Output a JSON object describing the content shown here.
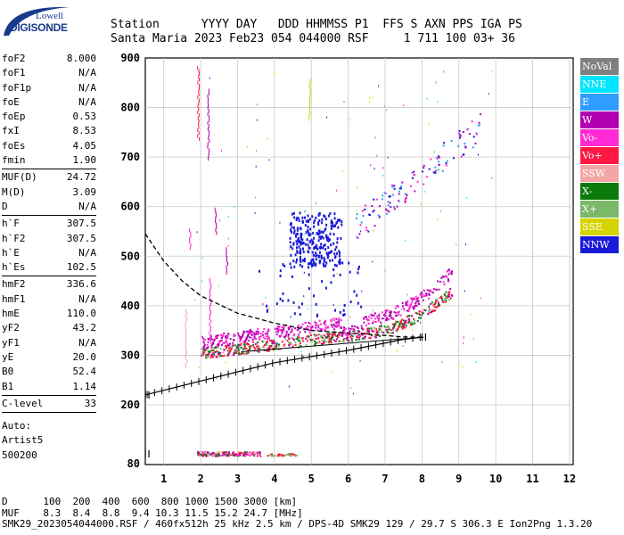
{
  "logo": {
    "line1": "Lowell",
    "line2": "DIGISONDE"
  },
  "header": {
    "line1": "Station      YYYY DAY   DDD HHMMSS P1  FFS S AXN PPS IGA PS",
    "line2": "Santa Maria 2023 Feb23 054 044000 RSF     1 711 100 03+ 36"
  },
  "params_groups": [
    [
      {
        "label": "foF2",
        "value": "8.000"
      },
      {
        "label": "foF1",
        "value": "N/A"
      },
      {
        "label": "foF1p",
        "value": "N/A"
      },
      {
        "label": "foE",
        "value": "N/A"
      },
      {
        "label": "foEp",
        "value": "0.53"
      },
      {
        "label": "fxI",
        "value": "8.53"
      },
      {
        "label": "foEs",
        "value": "4.05"
      },
      {
        "label": "fmin",
        "value": "1.90"
      }
    ],
    [
      {
        "label": "MUF(D)",
        "value": "24.72"
      },
      {
        "label": "M(D)",
        "value": "3.09"
      },
      {
        "label": "D",
        "value": "N/A"
      }
    ],
    [
      {
        "label": "h`F",
        "value": "307.5"
      },
      {
        "label": "h`F2",
        "value": "307.5"
      },
      {
        "label": "h`E",
        "value": "N/A"
      },
      {
        "label": "h`Es",
        "value": "102.5"
      }
    ],
    [
      {
        "label": "hmF2",
        "value": "336.6"
      },
      {
        "label": "hmF1",
        "value": "N/A"
      },
      {
        "label": "hmE",
        "value": "110.0"
      },
      {
        "label": "yF2",
        "value": "43.2"
      },
      {
        "label": "yF1",
        "value": "N/A"
      },
      {
        "label": "yE",
        "value": "20.0"
      },
      {
        "label": "B0",
        "value": "52.4"
      },
      {
        "label": "B1",
        "value": "1.14"
      }
    ],
    [
      {
        "label": "C-level",
        "value": "33"
      }
    ]
  ],
  "auto": [
    "Auto:",
    "Artist5",
    "500200"
  ],
  "legend": [
    {
      "label": "NoVal",
      "color": "#808080",
      "text": "#ffffff"
    },
    {
      "label": "NNE",
      "color": "#00e5ff",
      "text": "#ffffff"
    },
    {
      "label": "E",
      "color": "#2e9dff",
      "text": "#ffffff"
    },
    {
      "label": "W",
      "color": "#b000b0",
      "text": "#ffffff"
    },
    {
      "label": "Vo-",
      "color": "#ff2ad4",
      "text": "#ffffff"
    },
    {
      "label": "Vo+",
      "color": "#ff1744",
      "text": "#ffffff"
    },
    {
      "label": "SSW",
      "color": "#f4a6a6",
      "text": "#ffffff"
    },
    {
      "label": "X-",
      "color": "#0a7a0a",
      "text": "#ffffff"
    },
    {
      "label": "X+",
      "color": "#7ab86a",
      "text": "#ffffff"
    },
    {
      "label": "SSE",
      "color": "#d4d400",
      "text": "#ffffff"
    },
    {
      "label": "NNW",
      "color": "#1a1ad8",
      "text": "#ffffff"
    }
  ],
  "chart_data": {
    "type": "scatter",
    "x_ticks": [
      "1",
      "2",
      "3",
      "4",
      "5",
      "6",
      "7",
      "8",
      "9",
      "10",
      "11",
      "12"
    ],
    "y_ticks": [
      "80",
      "200",
      "300",
      "400",
      "500",
      "600",
      "700",
      "800",
      "900"
    ],
    "xlim": [
      0.5,
      12.1
    ],
    "ylim_note": "piecewise axis: 80 at bottom, 200-900 linear",
    "series_traces": [
      {
        "name": "F-trace-ordinary",
        "x": [
          2.0,
          3.0,
          4.0,
          5.0,
          6.0,
          7.0,
          7.5,
          8.0,
          8.5,
          8.8
        ],
        "y": [
          312,
          318,
          328,
          338,
          350,
          365,
          380,
          395,
          415,
          440
        ]
      },
      {
        "name": "F-trace-upper",
        "x": [
          2.0,
          3.0,
          4.0,
          5.0,
          5.5,
          6.0,
          7.0,
          8.0,
          8.5,
          9.0
        ],
        "y": [
          330,
          345,
          355,
          375,
          385,
          360,
          375,
          400,
          440,
          480
        ]
      },
      {
        "name": "Es-trace",
        "x": [
          1.9,
          2.5,
          3.0,
          3.5,
          4.0,
          4.5
        ],
        "y": [
          100,
          101,
          100,
          101,
          100,
          100
        ]
      }
    ],
    "profile_dashed": {
      "x": [
        0.5,
        1.0,
        1.5,
        2.0,
        3.0,
        4.0,
        5.0,
        6.0,
        7.0,
        7.5,
        8.0
      ],
      "y": [
        545,
        490,
        450,
        420,
        385,
        365,
        350,
        345,
        340,
        337,
        336.6
      ]
    },
    "muf_line": {
      "x": [
        0.5,
        2.0,
        4.0,
        6.0,
        7.5,
        8.0
      ],
      "y": [
        220,
        248,
        285,
        310,
        332,
        336.6
      ]
    }
  },
  "footer": {
    "line1": "D      100  200  400  600  800 1000 1500 3000 [km]",
    "line2": "MUF    8.3  8.4  8.8  9.4 10.3 11.5 15.2 24.7 [MHz]",
    "line3": "SMK29_2023054044000.RSF / 460fx512h 25 kHz 2.5 km / DPS-4D SMK29 129 / 29.7 S 306.3 E Ion2Png 1.3.20"
  }
}
